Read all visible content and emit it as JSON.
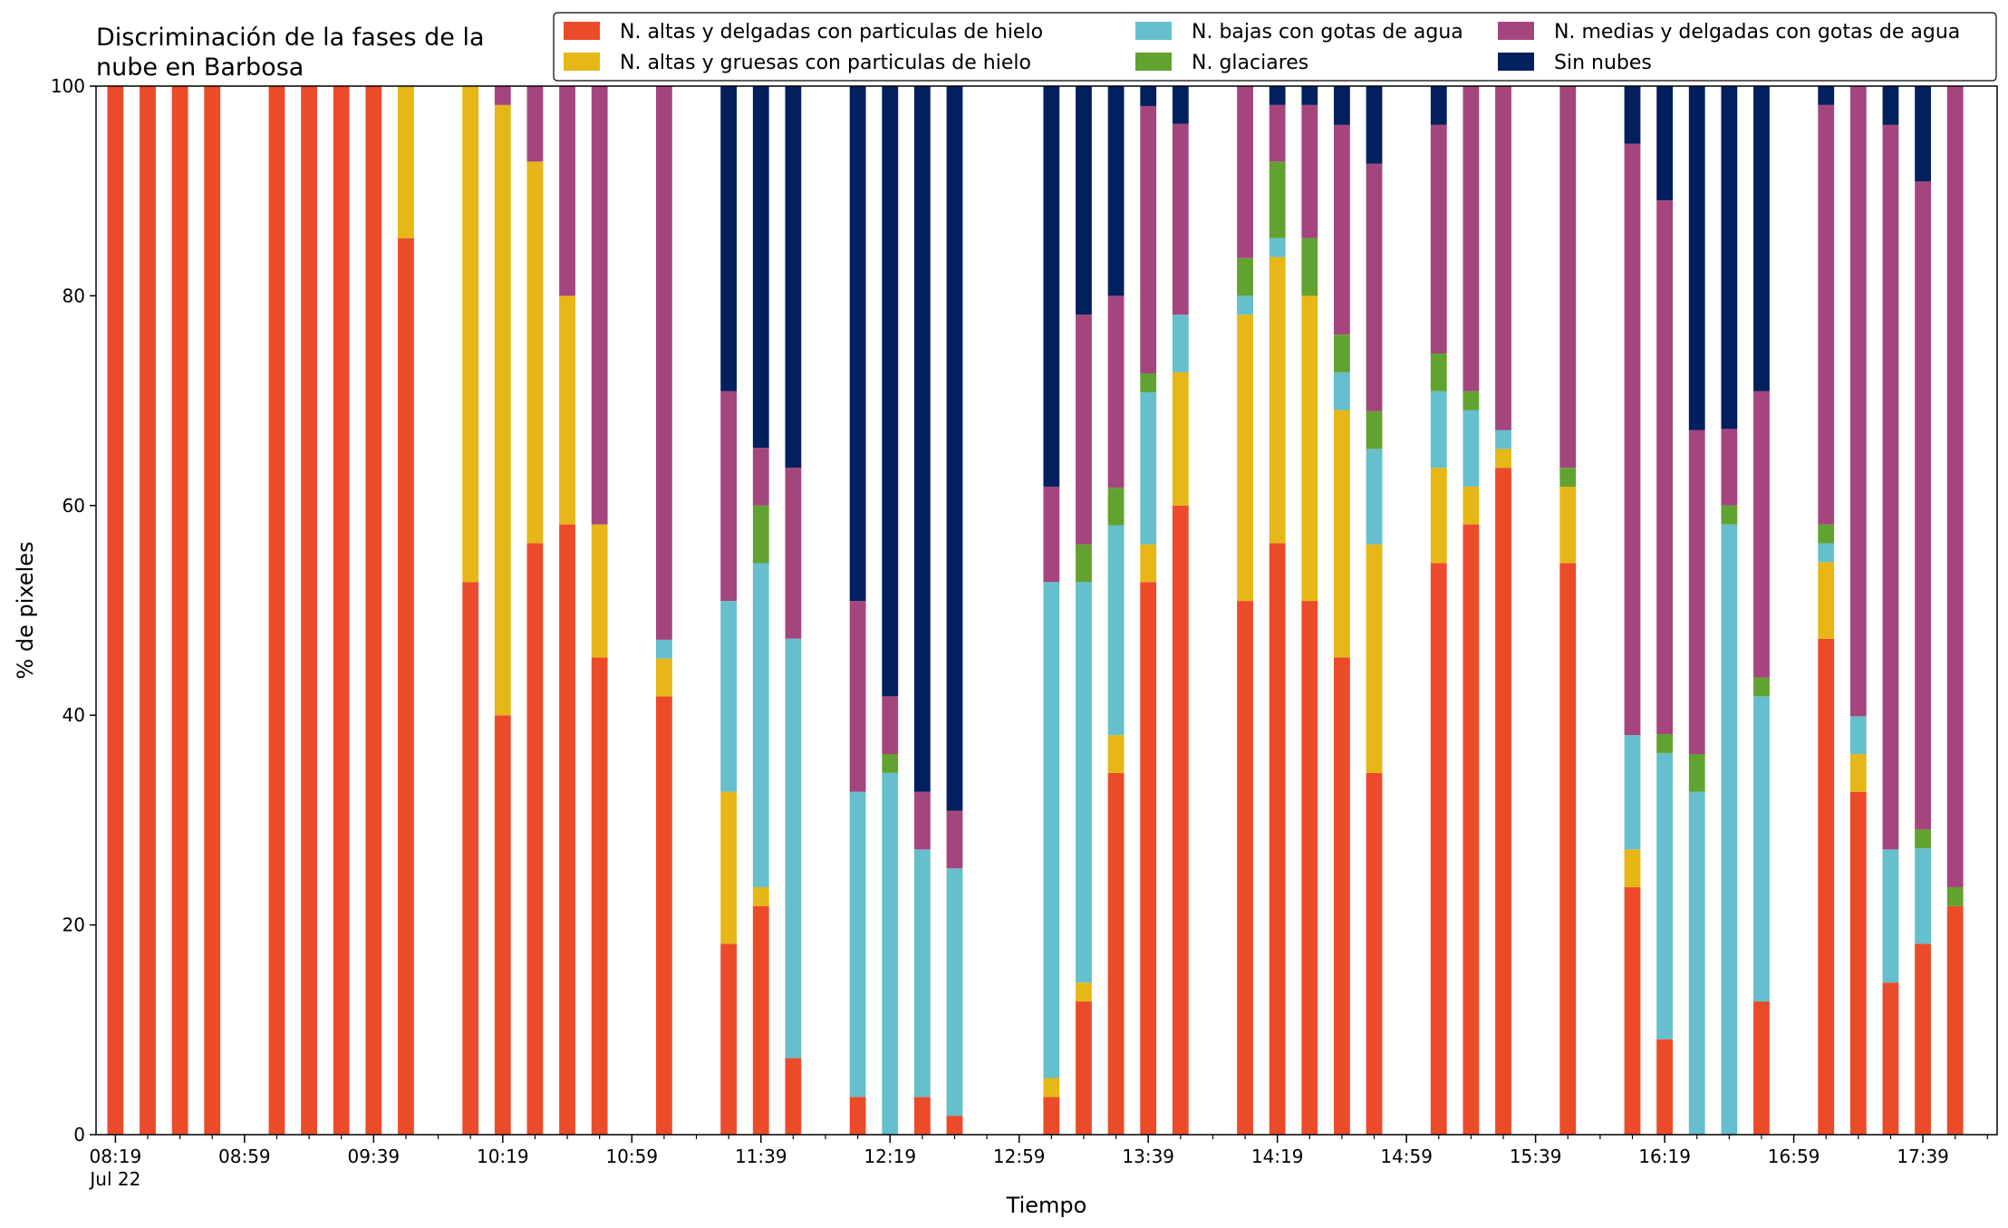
{
  "chart_data": {
    "type": "bar",
    "stacked": true,
    "title_lines": [
      "Discriminación de la fases de la",
      "nube en Barbosa"
    ],
    "xlabel": "Tiempo",
    "ylabel": "% de pixeles",
    "ylim": [
      0,
      100
    ],
    "yticks": [
      0,
      20,
      40,
      60,
      80,
      100
    ],
    "xlim_minutes_after_0819": [
      -6,
      583
    ],
    "major_ticks": [
      {
        "label": "08:19",
        "sublabel": "Jul 22",
        "minute": 0
      },
      {
        "label": "08:59",
        "minute": 40
      },
      {
        "label": "09:39",
        "minute": 80
      },
      {
        "label": "10:19",
        "minute": 120
      },
      {
        "label": "10:59",
        "minute": 160
      },
      {
        "label": "11:39",
        "minute": 200
      },
      {
        "label": "12:19",
        "minute": 240
      },
      {
        "label": "12:59",
        "minute": 280
      },
      {
        "label": "13:39",
        "minute": 320
      },
      {
        "label": "14:19",
        "minute": 360
      },
      {
        "label": "14:59",
        "minute": 400
      },
      {
        "label": "15:39",
        "minute": 440
      },
      {
        "label": "16:19",
        "minute": 480
      },
      {
        "label": "16:59",
        "minute": 520
      },
      {
        "label": "17:39",
        "minute": 560
      }
    ],
    "grid": false,
    "legend_position": "top-right",
    "series_order": [
      "altas_delgadas",
      "altas_gruesas",
      "bajas",
      "glaciares",
      "medias",
      "sin_nubes"
    ],
    "series": [
      {
        "key": "altas_delgadas",
        "name": "N. altas y delgadas con particulas de hielo",
        "color": "#EC4B2A"
      },
      {
        "key": "altas_gruesas",
        "name": "N. altas y gruesas con particulas de hielo",
        "color": "#E6B717"
      },
      {
        "key": "bajas",
        "name": "N. bajas con gotas de agua",
        "color": "#66BFCC"
      },
      {
        "key": "glaciares",
        "name": "N. glaciares",
        "color": "#62A230"
      },
      {
        "key": "medias",
        "name": "N. medias y delgadas con gotas de agua",
        "color": "#A5457E"
      },
      {
        "key": "sin_nubes",
        "name": "Sin nubes",
        "color": "#03205E"
      }
    ],
    "legend_order": [
      "altas_delgadas",
      "altas_gruesas",
      "bajas",
      "glaciares",
      "medias",
      "sin_nubes"
    ],
    "bar_width_minutes": 5,
    "bars": [
      {
        "time": "08:19",
        "values": [
          100,
          0,
          0,
          0,
          0,
          0
        ]
      },
      {
        "time": "08:29",
        "values": [
          100,
          0,
          0,
          0,
          0,
          0
        ]
      },
      {
        "time": "08:39",
        "values": [
          100,
          0,
          0,
          0,
          0,
          0
        ]
      },
      {
        "time": "08:49",
        "values": [
          100,
          0,
          0,
          0,
          0,
          0
        ]
      },
      {
        "time": "09:09",
        "values": [
          100,
          0,
          0,
          0,
          0,
          0
        ]
      },
      {
        "time": "09:19",
        "values": [
          100,
          0,
          0,
          0,
          0,
          0
        ]
      },
      {
        "time": "09:29",
        "values": [
          100,
          0,
          0,
          0,
          0,
          0
        ]
      },
      {
        "time": "09:39",
        "values": [
          100,
          0,
          0,
          0,
          0,
          0
        ]
      },
      {
        "time": "09:49",
        "values": [
          85.5,
          14.5,
          0,
          0,
          0,
          0
        ]
      },
      {
        "time": "10:09",
        "values": [
          52.7,
          47.3,
          0,
          0,
          0,
          0
        ]
      },
      {
        "time": "10:19",
        "values": [
          40.0,
          58.2,
          0,
          0,
          1.8,
          0
        ]
      },
      {
        "time": "10:29",
        "values": [
          56.4,
          36.4,
          0,
          0,
          7.2,
          0
        ]
      },
      {
        "time": "10:39",
        "values": [
          58.2,
          21.8,
          0,
          0,
          20.0,
          0
        ]
      },
      {
        "time": "10:49",
        "values": [
          45.5,
          12.7,
          0,
          0,
          41.8,
          0
        ]
      },
      {
        "time": "11:09",
        "values": [
          41.8,
          3.6,
          1.8,
          0,
          52.8,
          0
        ]
      },
      {
        "time": "11:29",
        "values": [
          18.2,
          14.5,
          18.2,
          0,
          20.0,
          29.1
        ]
      },
      {
        "time": "11:39",
        "values": [
          21.8,
          1.8,
          30.9,
          5.5,
          5.5,
          34.5
        ]
      },
      {
        "time": "11:49",
        "values": [
          7.3,
          0,
          40.0,
          0,
          16.3,
          36.4
        ]
      },
      {
        "time": "12:09",
        "values": [
          3.6,
          0,
          29.1,
          0,
          18.2,
          49.1
        ]
      },
      {
        "time": "12:19",
        "values": [
          0,
          0,
          34.5,
          1.8,
          5.5,
          58.2
        ]
      },
      {
        "time": "12:29",
        "values": [
          3.6,
          0,
          23.6,
          0,
          5.5,
          67.3
        ]
      },
      {
        "time": "12:39",
        "values": [
          1.8,
          0,
          23.6,
          0,
          5.5,
          69.1
        ]
      },
      {
        "time": "13:09",
        "values": [
          3.6,
          1.8,
          47.3,
          0,
          9.1,
          38.2
        ]
      },
      {
        "time": "13:19",
        "values": [
          12.7,
          1.8,
          38.2,
          3.6,
          21.9,
          21.8
        ]
      },
      {
        "time": "13:29",
        "values": [
          34.5,
          3.6,
          20.0,
          3.6,
          18.3,
          20.0
        ]
      },
      {
        "time": "13:39",
        "values": [
          52.7,
          3.6,
          14.5,
          1.8,
          25.5,
          1.9
        ]
      },
      {
        "time": "13:49",
        "values": [
          60.0,
          12.7,
          5.5,
          0,
          18.2,
          3.6
        ]
      },
      {
        "time": "14:09",
        "values": [
          50.9,
          27.3,
          1.8,
          3.6,
          16.4,
          0
        ]
      },
      {
        "time": "14:19",
        "values": [
          56.4,
          27.3,
          1.8,
          7.3,
          5.4,
          1.8
        ]
      },
      {
        "time": "14:29",
        "values": [
          50.9,
          29.1,
          0,
          5.5,
          12.7,
          1.8
        ]
      },
      {
        "time": "14:39",
        "values": [
          45.5,
          23.6,
          3.6,
          3.6,
          20.0,
          3.7
        ]
      },
      {
        "time": "14:49",
        "values": [
          34.5,
          21.8,
          9.1,
          3.6,
          23.6,
          7.4
        ]
      },
      {
        "time": "15:09",
        "values": [
          54.5,
          9.1,
          7.3,
          3.6,
          21.8,
          3.7
        ]
      },
      {
        "time": "15:19",
        "values": [
          58.2,
          3.6,
          7.3,
          1.8,
          29.1,
          0
        ]
      },
      {
        "time": "15:29",
        "values": [
          63.6,
          1.8,
          1.8,
          0,
          32.8,
          0
        ]
      },
      {
        "time": "15:49",
        "values": [
          54.5,
          7.3,
          0,
          1.8,
          36.4,
          0
        ]
      },
      {
        "time": "16:09",
        "values": [
          23.6,
          3.6,
          10.9,
          0,
          56.4,
          5.5
        ]
      },
      {
        "time": "16:19",
        "values": [
          9.1,
          0,
          27.3,
          1.8,
          50.9,
          10.9
        ]
      },
      {
        "time": "16:29",
        "values": [
          0,
          0,
          32.7,
          3.6,
          30.9,
          32.8
        ]
      },
      {
        "time": "16:39",
        "values": [
          0,
          0,
          58.2,
          1.8,
          7.3,
          32.7
        ]
      },
      {
        "time": "16:49",
        "values": [
          12.7,
          0,
          29.1,
          1.8,
          27.3,
          29.1
        ]
      },
      {
        "time": "17:09",
        "values": [
          47.3,
          7.3,
          1.8,
          1.8,
          40.0,
          1.8
        ]
      },
      {
        "time": "17:19",
        "values": [
          32.7,
          3.6,
          3.6,
          0,
          60.1,
          0
        ]
      },
      {
        "time": "17:29",
        "values": [
          14.5,
          0,
          12.7,
          0,
          69.1,
          3.7
        ]
      },
      {
        "time": "17:39",
        "values": [
          18.2,
          0,
          9.1,
          1.8,
          61.8,
          9.1
        ]
      },
      {
        "time": "17:49",
        "values": [
          21.8,
          0,
          0,
          1.8,
          76.4,
          0
        ]
      }
    ]
  }
}
